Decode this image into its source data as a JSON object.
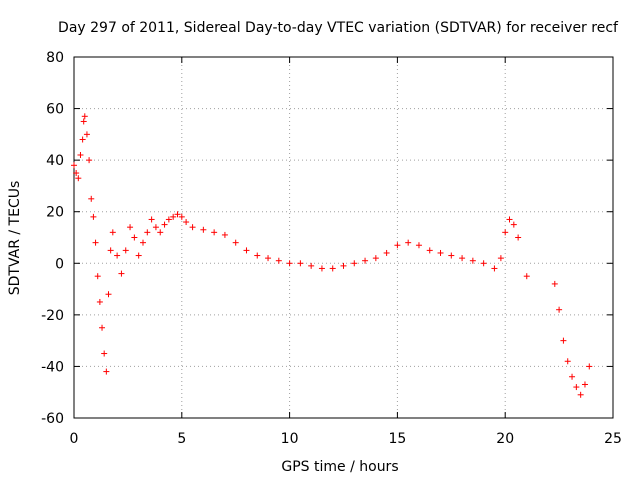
{
  "chart_data": {
    "type": "scatter",
    "title": "Day 297 of 2011, Sidereal Day-to-day VTEC variation (SDTVAR) for receiver recf",
    "xlabel": "GPS time / hours",
    "ylabel": "SDTVAR / TECUs",
    "xlim": [
      0,
      25
    ],
    "ylim": [
      -60,
      80
    ],
    "x_ticks": [
      0,
      5,
      10,
      15,
      20,
      25
    ],
    "y_ticks": [
      -60,
      -40,
      -20,
      0,
      20,
      40,
      60,
      80
    ],
    "x_tick_labels": [
      "0",
      "5",
      "10",
      "15",
      "20",
      "25"
    ],
    "y_tick_labels": [
      "-60",
      "-40",
      "-20",
      "0",
      "20",
      "40",
      "60",
      "80"
    ],
    "grid": true,
    "marker": "+",
    "color": "#ff0000",
    "series": [
      {
        "name": "SDTVAR",
        "x": [
          0.0,
          0.1,
          0.2,
          0.3,
          0.4,
          0.45,
          0.5,
          0.6,
          0.7,
          0.8,
          0.9,
          1.0,
          1.1,
          1.2,
          1.3,
          1.4,
          1.5,
          1.6,
          1.7,
          1.8,
          2.0,
          2.2,
          2.4,
          2.6,
          2.8,
          3.0,
          3.2,
          3.4,
          3.6,
          3.8,
          4.0,
          4.2,
          4.4,
          4.6,
          4.8,
          5.0,
          5.2,
          5.5,
          6.0,
          6.5,
          7.0,
          7.5,
          8.0,
          8.5,
          9.0,
          9.5,
          10.0,
          10.5,
          11.0,
          11.5,
          12.0,
          12.5,
          13.0,
          13.5,
          14.0,
          14.5,
          15.0,
          15.5,
          16.0,
          16.5,
          17.0,
          17.5,
          18.0,
          18.5,
          19.0,
          19.5,
          19.8,
          20.0,
          20.2,
          20.4,
          20.6,
          21.0,
          22.3,
          22.5,
          22.7,
          22.9,
          23.1,
          23.3,
          23.5,
          23.7,
          23.9
        ],
        "y": [
          38,
          35,
          33,
          42,
          48,
          55,
          57,
          50,
          40,
          25,
          18,
          8,
          -5,
          -15,
          -25,
          -35,
          -42,
          -12,
          5,
          12,
          3,
          -4,
          5,
          14,
          10,
          3,
          8,
          12,
          17,
          14,
          12,
          15,
          17,
          18,
          19,
          18,
          16,
          14,
          13,
          12,
          11,
          8,
          5,
          3,
          2,
          1,
          0,
          0,
          -1,
          -2,
          -2,
          -1,
          0,
          1,
          2,
          4,
          7,
          8,
          7,
          5,
          4,
          3,
          2,
          1,
          0,
          -2,
          2,
          12,
          17,
          15,
          10,
          -5,
          -8,
          -18,
          -30,
          -38,
          -44,
          -48,
          -51,
          -47,
          -40
        ]
      }
    ]
  }
}
